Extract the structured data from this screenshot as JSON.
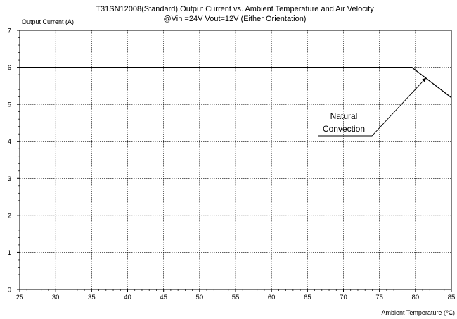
{
  "chart_data": {
    "type": "line",
    "title": "T31SN12008(Standard) Output Current vs. Ambient Temperature and Air Velocity",
    "subtitle": "@Vin =24V Vout=12V (Either Orientation)",
    "xlabel": "Ambient Temperature  (℃)",
    "ylabel": "Output  Current  (A)",
    "xlim": [
      25,
      85
    ],
    "ylim": [
      0,
      7
    ],
    "xticks": [
      25,
      30,
      35,
      40,
      45,
      50,
      55,
      60,
      65,
      70,
      75,
      80,
      85
    ],
    "yticks": [
      0,
      1,
      2,
      3,
      4,
      5,
      6,
      7
    ],
    "grid": true,
    "series": [
      {
        "x": [
          25,
          79.5,
          85
        ],
        "y": [
          6.0,
          6.0,
          5.18
        ]
      }
    ],
    "annotations": [
      {
        "text_lines": [
          "Natural",
          "Convection"
        ],
        "points_to": {
          "x": 81.5,
          "y": 5.72
        }
      }
    ]
  }
}
